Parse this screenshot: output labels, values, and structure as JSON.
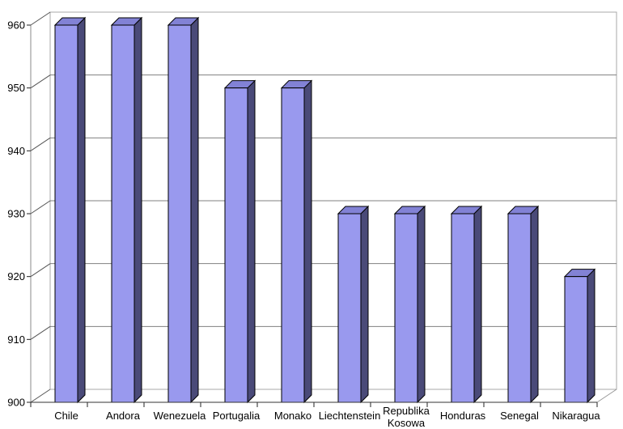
{
  "page": {
    "background": "#FFFFFF"
  },
  "chart_data": {
    "type": "bar",
    "style": "3d-column",
    "title": "",
    "subtitle": "",
    "xlabel": "",
    "ylabel": "",
    "legend": false,
    "grid": true,
    "categories": [
      "Chile",
      "Andora",
      "Wenezuela",
      "Portugalia",
      "Monako",
      "Liechtenstein",
      "Republika Kosowa",
      "Honduras",
      "Senegal",
      "Nikaragua"
    ],
    "values": [
      960,
      960,
      960,
      950,
      950,
      930,
      930,
      930,
      930,
      920
    ],
    "ylim": [
      900,
      960
    ],
    "ytick_step": 10,
    "ytick_labels": [
      "900",
      "910",
      "920",
      "930",
      "940",
      "950",
      "960"
    ],
    "colors": {
      "bar_front": "#9999EE",
      "bar_top": "#8282D5",
      "bar_side": "#4A4A78",
      "bar_outline": "#000000",
      "gridline": "#808080",
      "wall_edge": "#A8A8A8",
      "wall_fill": "#FFFFFF",
      "axis": "#333333",
      "tick": "#222222",
      "connector": "#555555",
      "front_axis_line": "#888888",
      "floor_edge": "#999999",
      "text": "#000000",
      "background": "#FFFFFF"
    }
  }
}
